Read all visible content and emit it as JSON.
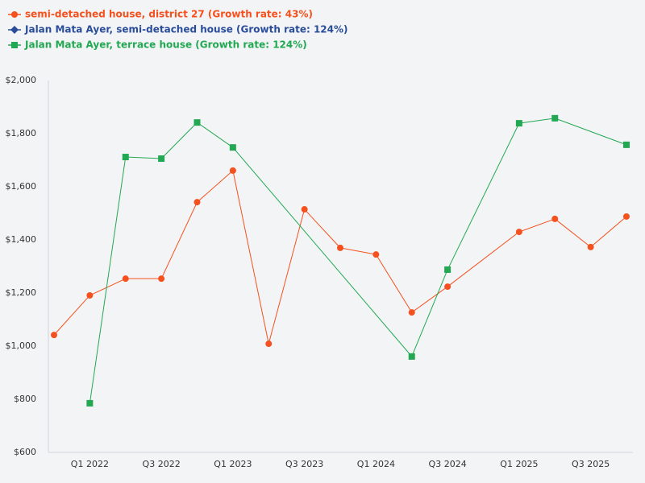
{
  "chart_data": {
    "type": "line",
    "categories": [
      null,
      "Q1 2022",
      null,
      "Q3 2022",
      null,
      "Q1 2023",
      null,
      "Q3 2023",
      null,
      "Q1 2024",
      null,
      "Q3 2024",
      null,
      "Q1 2025",
      null,
      "Q3 2025",
      null
    ],
    "series": [
      {
        "name": "semi-detached house, district 27 (Growth rate: 43%)",
        "color": "#f4511e",
        "marker": "circle",
        "values": [
          1042,
          1191,
          1254,
          1254,
          1542,
          1661,
          1009,
          1515,
          1370,
          1345,
          1127,
          1224,
          null,
          1430,
          1479,
          1373,
          1488
        ]
      },
      {
        "name": "Jalan Mata Ayer, semi-detached house (Growth rate: 124%)",
        "color": "#2a4d9b",
        "marker": "diamond",
        "values": [
          null,
          null,
          null,
          null,
          null,
          null,
          null,
          null,
          null,
          null,
          null,
          null,
          null,
          null,
          null,
          null,
          null
        ]
      },
      {
        "name": "Jalan Mata Ayer, terrace house (Growth rate: 124%)",
        "color": "#22a852",
        "marker": "square",
        "values": [
          null,
          785,
          1712,
          1706,
          1842,
          1748,
          null,
          null,
          null,
          null,
          961,
          1288,
          null,
          1839,
          1858,
          null,
          1758
        ]
      }
    ],
    "ylim": [
      600,
      2000
    ],
    "yticks": [
      {
        "value": 600,
        "label": "$600"
      },
      {
        "value": 800,
        "label": "$800"
      },
      {
        "value": 1000,
        "label": "$1,000"
      },
      {
        "value": 1200,
        "label": "$1,200"
      },
      {
        "value": 1400,
        "label": "$1,400"
      },
      {
        "value": 1600,
        "label": "$1,600"
      },
      {
        "value": 1800,
        "label": "$1,800"
      },
      {
        "value": 2000,
        "label": "$2,000"
      }
    ],
    "grid": false,
    "connect_gaps": true
  }
}
